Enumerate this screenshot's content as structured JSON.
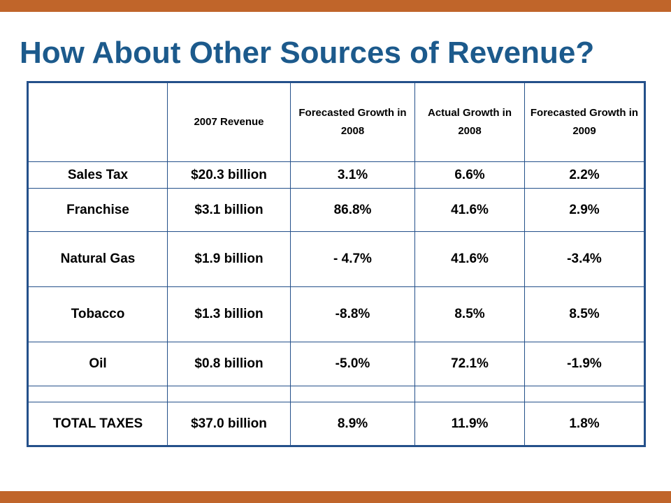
{
  "title": "How About Other Sources of Revenue?",
  "colors": {
    "accent_bar": "#c0652a",
    "title": "#1c5a8c",
    "table_border": "#24508a"
  },
  "table": {
    "headers": [
      "",
      "2007 Revenue",
      "Forecasted Growth in 2008",
      "Actual Growth in 2008",
      "Forecasted Growth in 2009"
    ],
    "rows": [
      [
        "Sales Tax",
        "$20.3 billion",
        "3.1%",
        "6.6%",
        "2.2%"
      ],
      [
        "Franchise",
        "$3.1 billion",
        "86.8%",
        "41.6%",
        "2.9%"
      ],
      [
        "Natural Gas",
        "$1.9 billion",
        "- 4.7%",
        "41.6%",
        "-3.4%"
      ],
      [
        "Tobacco",
        "$1.3 billion",
        "-8.8%",
        "8.5%",
        "8.5%"
      ],
      [
        "Oil",
        "$0.8 billion",
        "-5.0%",
        "72.1%",
        "-1.9%"
      ],
      [
        "",
        "",
        "",
        "",
        ""
      ],
      [
        "TOTAL TAXES",
        "$37.0 billion",
        "8.9%",
        "11.9%",
        "1.8%"
      ]
    ]
  }
}
